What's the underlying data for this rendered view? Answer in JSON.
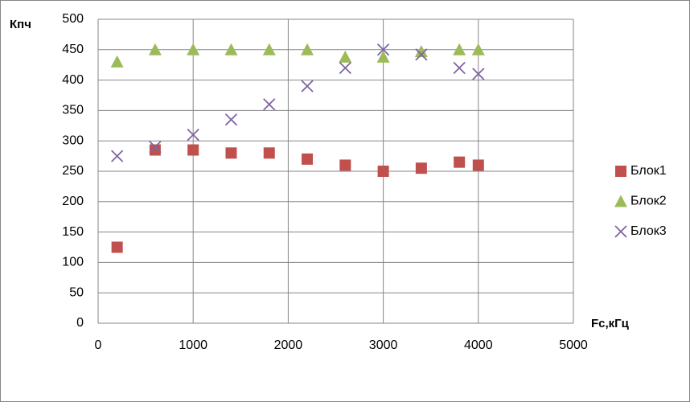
{
  "chart_data": {
    "type": "scatter",
    "y_label": "Кпч",
    "x_label": "Fc,кГц",
    "x": [
      200,
      600,
      1000,
      1400,
      1800,
      2200,
      2600,
      3000,
      3400,
      3800,
      4000
    ],
    "series": [
      {
        "name": "Блок1",
        "color": "#c0504d",
        "marker": "square",
        "values": [
          125,
          285,
          285,
          280,
          280,
          270,
          260,
          250,
          255,
          265,
          260
        ]
      },
      {
        "name": "Блок2",
        "color": "#9bbb59",
        "marker": "triangle",
        "values": [
          430,
          450,
          450,
          450,
          450,
          450,
          438,
          438,
          447,
          450,
          450
        ]
      },
      {
        "name": "Блок3",
        "color": "#8064a2",
        "marker": "x",
        "values": [
          275,
          290,
          310,
          335,
          360,
          390,
          420,
          450,
          442,
          420,
          410
        ]
      }
    ],
    "xlim": [
      0,
      5000
    ],
    "xticks": [
      0,
      1000,
      2000,
      3000,
      4000,
      5000
    ],
    "ylim": [
      0,
      500
    ],
    "yticks": [
      0,
      50,
      100,
      150,
      200,
      250,
      300,
      350,
      400,
      450,
      500
    ],
    "grid": true,
    "legend": "right"
  }
}
